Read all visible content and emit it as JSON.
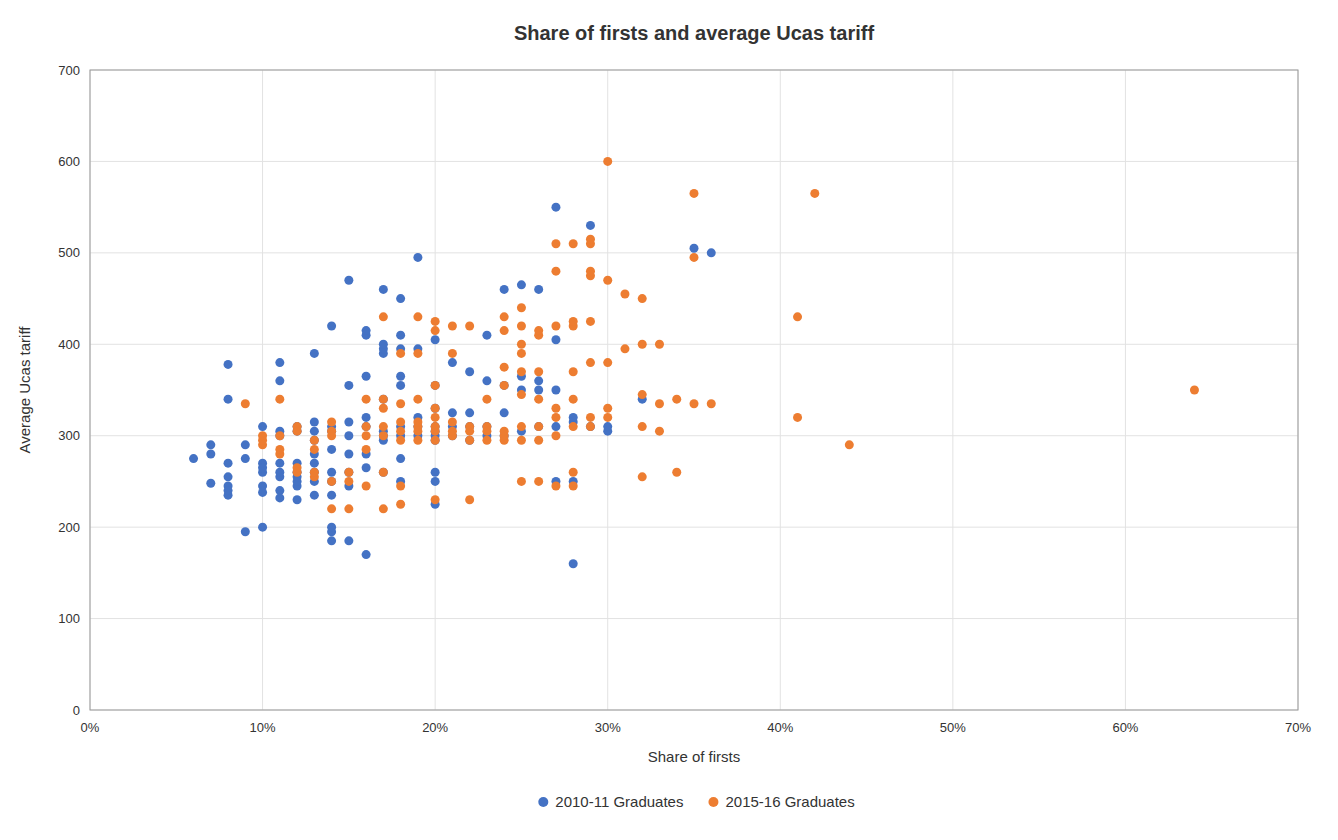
{
  "chart_data": {
    "type": "scatter",
    "title": "Share of firsts and average Ucas tariff",
    "x_label": "Share of firsts",
    "y_label": "Average Ucas tariff",
    "xlim": [
      0,
      0.7
    ],
    "ylim": [
      0,
      700
    ],
    "xticks": [
      {
        "value": 0,
        "label": "0%"
      },
      {
        "value": 0.1,
        "label": "10%"
      },
      {
        "value": 0.2,
        "label": "20%"
      },
      {
        "value": 0.3,
        "label": "30%"
      },
      {
        "value": 0.4,
        "label": "40%"
      },
      {
        "value": 0.5,
        "label": "50%"
      },
      {
        "value": 0.6,
        "label": "60%"
      },
      {
        "value": 0.7,
        "label": "70%"
      }
    ],
    "yticks": [
      0,
      100,
      200,
      300,
      400,
      500,
      600,
      700
    ],
    "grid": true,
    "legend": "bottom",
    "series": [
      {
        "name": "2010-11 Graduates",
        "color": "#4472C4",
        "x": [
          0.06,
          0.07,
          0.07,
          0.07,
          0.08,
          0.08,
          0.08,
          0.08,
          0.08,
          0.08,
          0.08,
          0.09,
          0.09,
          0.09,
          0.1,
          0.1,
          0.1,
          0.1,
          0.1,
          0.1,
          0.1,
          0.11,
          0.11,
          0.11,
          0.11,
          0.11,
          0.11,
          0.11,
          0.11,
          0.11,
          0.12,
          0.12,
          0.12,
          0.12,
          0.12,
          0.12,
          0.12,
          0.12,
          0.13,
          0.13,
          0.13,
          0.13,
          0.13,
          0.13,
          0.13,
          0.13,
          0.13,
          0.14,
          0.14,
          0.14,
          0.14,
          0.14,
          0.14,
          0.14,
          0.14,
          0.14,
          0.14,
          0.15,
          0.15,
          0.15,
          0.15,
          0.15,
          0.15,
          0.15,
          0.15,
          0.16,
          0.16,
          0.16,
          0.16,
          0.16,
          0.16,
          0.16,
          0.16,
          0.17,
          0.17,
          0.17,
          0.17,
          0.17,
          0.17,
          0.17,
          0.17,
          0.17,
          0.18,
          0.18,
          0.18,
          0.18,
          0.18,
          0.18,
          0.18,
          0.18,
          0.18,
          0.19,
          0.19,
          0.19,
          0.19,
          0.19,
          0.2,
          0.2,
          0.2,
          0.2,
          0.2,
          0.2,
          0.2,
          0.2,
          0.2,
          0.2,
          0.21,
          0.21,
          0.21,
          0.21,
          0.22,
          0.22,
          0.22,
          0.22,
          0.23,
          0.23,
          0.23,
          0.23,
          0.24,
          0.24,
          0.24,
          0.24,
          0.25,
          0.25,
          0.25,
          0.25,
          0.26,
          0.26,
          0.26,
          0.26,
          0.27,
          0.27,
          0.27,
          0.27,
          0.27,
          0.28,
          0.28,
          0.28,
          0.28,
          0.29,
          0.29,
          0.3,
          0.3,
          0.32,
          0.35,
          0.36
        ],
        "values": [
          275,
          280,
          248,
          290,
          245,
          255,
          235,
          240,
          270,
          340,
          378,
          195,
          275,
          290,
          200,
          260,
          270,
          265,
          238,
          245,
          310,
          232,
          240,
          255,
          270,
          260,
          300,
          305,
          360,
          380,
          230,
          245,
          250,
          255,
          260,
          270,
          305,
          310,
          235,
          250,
          260,
          270,
          280,
          295,
          305,
          315,
          390,
          185,
          195,
          200,
          235,
          250,
          260,
          285,
          305,
          310,
          420,
          185,
          245,
          260,
          280,
          300,
          315,
          355,
          470,
          170,
          265,
          280,
          310,
          320,
          365,
          410,
          415,
          260,
          295,
          300,
          305,
          340,
          390,
          395,
          400,
          460,
          250,
          275,
          300,
          310,
          355,
          365,
          395,
          410,
          450,
          300,
          310,
          320,
          395,
          495,
          225,
          250,
          260,
          295,
          300,
          305,
          310,
          330,
          355,
          405,
          300,
          310,
          325,
          380,
          295,
          310,
          325,
          370,
          300,
          310,
          360,
          410,
          300,
          325,
          355,
          460,
          305,
          350,
          365,
          465,
          310,
          350,
          360,
          460,
          250,
          310,
          350,
          405,
          550,
          160,
          250,
          315,
          320,
          310,
          530,
          305,
          310,
          340,
          505,
          500
        ]
      },
      {
        "name": "2015-16 Graduates",
        "color": "#ED7D31",
        "x": [
          0.09,
          0.1,
          0.1,
          0.1,
          0.11,
          0.11,
          0.11,
          0.11,
          0.12,
          0.12,
          0.12,
          0.12,
          0.13,
          0.13,
          0.13,
          0.13,
          0.14,
          0.14,
          0.14,
          0.14,
          0.14,
          0.15,
          0.15,
          0.15,
          0.16,
          0.16,
          0.16,
          0.16,
          0.16,
          0.17,
          0.17,
          0.17,
          0.17,
          0.17,
          0.17,
          0.17,
          0.18,
          0.18,
          0.18,
          0.18,
          0.18,
          0.18,
          0.18,
          0.19,
          0.19,
          0.19,
          0.19,
          0.19,
          0.19,
          0.19,
          0.2,
          0.2,
          0.2,
          0.2,
          0.2,
          0.2,
          0.2,
          0.2,
          0.2,
          0.21,
          0.21,
          0.21,
          0.21,
          0.21,
          0.22,
          0.22,
          0.22,
          0.22,
          0.22,
          0.23,
          0.23,
          0.23,
          0.23,
          0.24,
          0.24,
          0.24,
          0.24,
          0.24,
          0.24,
          0.24,
          0.25,
          0.25,
          0.25,
          0.25,
          0.25,
          0.25,
          0.25,
          0.25,
          0.25,
          0.26,
          0.26,
          0.26,
          0.26,
          0.26,
          0.26,
          0.26,
          0.27,
          0.27,
          0.27,
          0.27,
          0.27,
          0.27,
          0.27,
          0.28,
          0.28,
          0.28,
          0.28,
          0.28,
          0.28,
          0.28,
          0.28,
          0.29,
          0.29,
          0.29,
          0.29,
          0.29,
          0.29,
          0.29,
          0.29,
          0.3,
          0.3,
          0.3,
          0.3,
          0.3,
          0.31,
          0.31,
          0.32,
          0.32,
          0.32,
          0.32,
          0.32,
          0.33,
          0.33,
          0.33,
          0.34,
          0.34,
          0.35,
          0.35,
          0.35,
          0.36,
          0.41,
          0.41,
          0.42,
          0.44,
          0.64
        ],
        "values": [
          335,
          290,
          295,
          300,
          280,
          285,
          300,
          340,
          260,
          265,
          305,
          310,
          255,
          260,
          285,
          295,
          220,
          250,
          300,
          305,
          315,
          220,
          250,
          260,
          245,
          285,
          300,
          310,
          340,
          220,
          260,
          300,
          310,
          330,
          340,
          430,
          225,
          245,
          295,
          305,
          315,
          335,
          390,
          295,
          305,
          310,
          315,
          340,
          390,
          430,
          230,
          295,
          305,
          310,
          320,
          330,
          355,
          415,
          425,
          300,
          305,
          315,
          390,
          420,
          230,
          295,
          305,
          310,
          420,
          295,
          305,
          310,
          340,
          295,
          300,
          305,
          355,
          375,
          415,
          430,
          250,
          295,
          310,
          345,
          370,
          390,
          400,
          420,
          440,
          250,
          295,
          310,
          340,
          370,
          410,
          415,
          245,
          300,
          320,
          330,
          420,
          480,
          510,
          245,
          260,
          310,
          340,
          370,
          420,
          425,
          510,
          310,
          320,
          380,
          425,
          475,
          480,
          510,
          515,
          320,
          330,
          380,
          470,
          600,
          395,
          455,
          255,
          310,
          345,
          400,
          450,
          305,
          335,
          400,
          260,
          340,
          335,
          495,
          565,
          335,
          320,
          430,
          565,
          290,
          350
        ]
      }
    ]
  }
}
